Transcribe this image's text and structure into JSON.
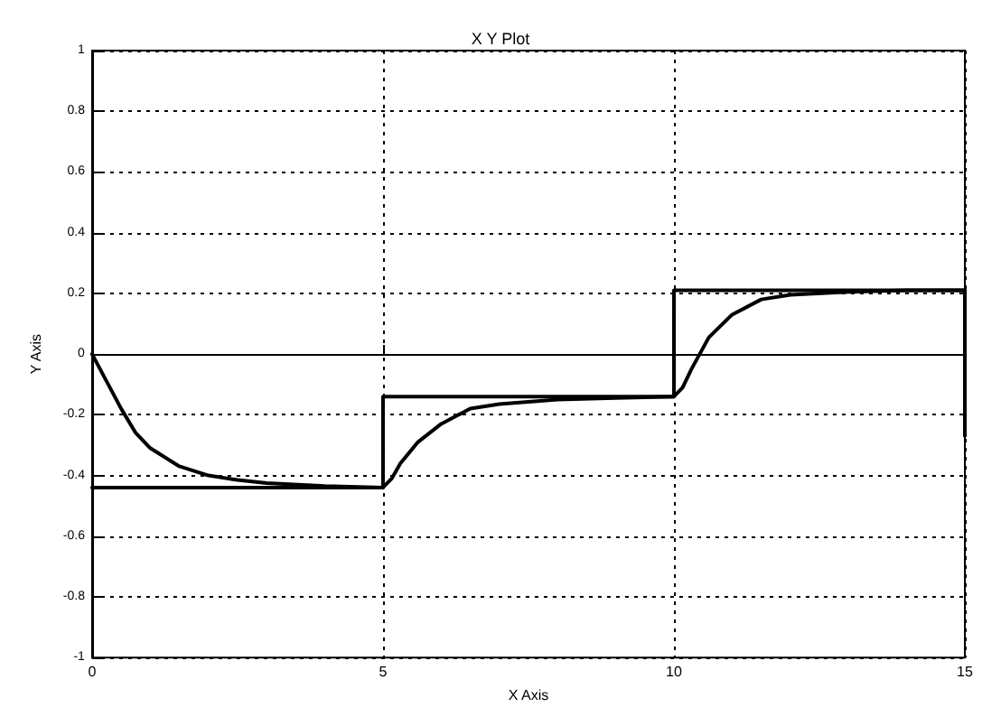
{
  "chart_data": {
    "type": "line",
    "title": "X Y Plot",
    "xlabel": "X Axis",
    "ylabel": "Y Axis",
    "xlim": [
      0,
      15
    ],
    "xticks": [
      0,
      5,
      10,
      15
    ],
    "ylim": [
      -1,
      1
    ],
    "yticks": [
      -1,
      -0.8,
      -0.6,
      -0.4,
      -0.2,
      0,
      0.2,
      0.4,
      0.6,
      0.8,
      1
    ],
    "grid": true,
    "line_style": "solid",
    "marker": "none",
    "series": [
      {
        "type": "step",
        "color": "#000000",
        "x": [
          0,
          5,
          10,
          15,
          15
        ],
        "values": [
          -0.44,
          -0.14,
          0.21,
          0.21,
          -0.27
        ]
      },
      {
        "color": "#000000",
        "x": [
          0,
          0.25,
          0.5,
          0.75,
          1,
          1.5,
          2,
          2.5,
          3,
          4,
          5,
          5.15,
          5.3,
          5.6,
          6,
          6.5,
          7,
          8,
          9,
          10,
          10.15,
          10.3,
          10.6,
          11,
          11.5,
          12,
          13,
          14,
          15
        ],
        "values": [
          0,
          -0.09,
          -0.18,
          -0.26,
          -0.31,
          -0.37,
          -0.4,
          -0.415,
          -0.425,
          -0.435,
          -0.44,
          -0.41,
          -0.36,
          -0.29,
          -0.23,
          -0.18,
          -0.165,
          -0.15,
          -0.145,
          -0.14,
          -0.11,
          -0.05,
          0.055,
          0.13,
          0.18,
          0.195,
          0.205,
          0.21,
          0.21
        ]
      }
    ]
  }
}
